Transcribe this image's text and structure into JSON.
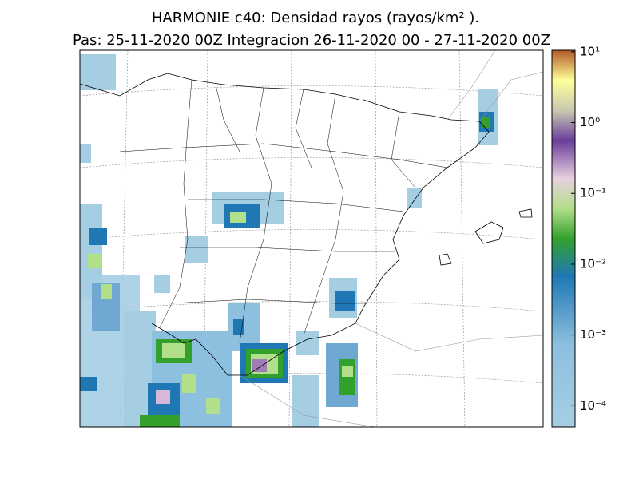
{
  "chart_data": {
    "type": "map",
    "title": "HARMONIE c40: Densidad rayos  (rayos/km² ).",
    "subtitle": "Pas: 25-11-2020 00Z Integracion 26-11-2020 00 - 27-11-2020 00Z",
    "colorbar": {
      "scale": "log",
      "lim": [
        5e-05,
        10.5
      ],
      "ticks": [
        {
          "value": 0.0001,
          "label": "10⁻⁴"
        },
        {
          "value": 0.001,
          "label": "10⁻³"
        },
        {
          "value": 0.01,
          "label": "10⁻²"
        },
        {
          "value": 0.1,
          "label": "10⁻¹"
        },
        {
          "value": 1,
          "label": "10⁰"
        },
        {
          "value": 10,
          "label": "10¹"
        }
      ]
    }
  }
}
